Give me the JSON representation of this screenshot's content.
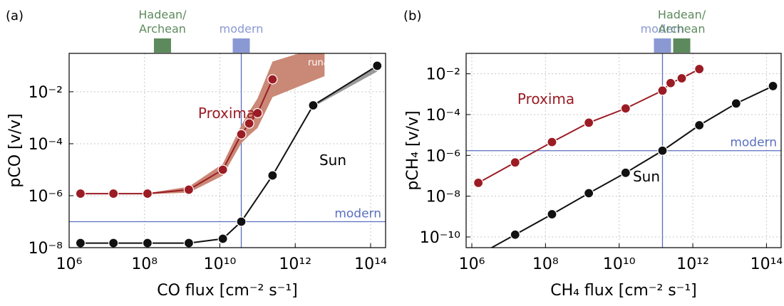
{
  "chart_data": [
    {
      "type": "line",
      "panel_label": "(a)",
      "xlabel": "CO flux [cm⁻² s⁻¹]",
      "ylabel": "pCO [v/v]",
      "xscale": "log",
      "yscale": "log",
      "xlim": [
        1000000,
        250000000000000.0
      ],
      "ylim": [
        1e-08,
        0.3
      ],
      "grid": true,
      "x_ticks": [
        1000000,
        100000000,
        10000000000,
        1000000000000,
        100000000000000
      ],
      "x_tick_labels": [
        "10⁶",
        "10⁸",
        "10¹⁰",
        "10¹²",
        "10¹⁴"
      ],
      "y_ticks": [
        1e-08,
        1e-06,
        0.0001,
        0.01
      ],
      "y_tick_labels": [
        "10⁻⁸",
        "10⁻⁶",
        "10⁻⁴",
        "10⁻²"
      ],
      "series": [
        {
          "name": "Proxima",
          "color": "#9b1c24",
          "x": [
            2000000,
            15000000,
            120000000,
            1500000000,
            12000000000,
            37000000000,
            60000000000,
            100000000000,
            250000000000
          ],
          "y": [
            1.2e-06,
            1.2e-06,
            1.2e-06,
            1.7e-06,
            1e-05,
            0.00023,
            0.0006,
            0.0015,
            0.03
          ]
        },
        {
          "name": "Sun",
          "color": "#111111",
          "x": [
            2000000,
            15000000,
            120000000,
            1500000000,
            12000000000,
            37000000000,
            250000000000,
            3000000000000,
            150000000000000
          ],
          "y": [
            1.5e-08,
            1.5e-08,
            1.5e-08,
            1.5e-08,
            2.2e-08,
            1e-07,
            6e-06,
            0.003,
            0.1
          ]
        }
      ],
      "bands": [
        {
          "label": "runaway",
          "color": "#c7826f"
        }
      ],
      "ref_lines": {
        "vertical_x": 37000000000,
        "horizontal_y": 1e-07,
        "horizontal_label": "modern",
        "color": "#5a6fbf"
      },
      "top_markers": [
        {
          "label_lines": [
            "Hadean/",
            "Archean"
          ],
          "x": 300000000,
          "color": "#5d8a5d"
        },
        {
          "label_lines": [
            "modern"
          ],
          "x": 37000000000,
          "color": "#8a98d4"
        }
      ],
      "annotations": {
        "proxima": "Proxima",
        "sun": "Sun"
      }
    },
    {
      "type": "line",
      "panel_label": "(b)",
      "xlabel": "CH₄ flux [cm⁻² s⁻¹]",
      "ylabel": "pCH₄ [v/v]",
      "xscale": "log",
      "yscale": "log",
      "xlim": [
        700000,
        250000000000000.0
      ],
      "ylim": [
        3e-11,
        0.1
      ],
      "grid": true,
      "x_ticks": [
        1000000,
        100000000,
        10000000000,
        1000000000000,
        100000000000000
      ],
      "x_tick_labels": [
        "10⁶",
        "10⁸",
        "10¹⁰",
        "10¹²",
        "10¹⁴"
      ],
      "y_ticks": [
        1e-10,
        1e-08,
        1e-06,
        0.0001,
        0.01
      ],
      "y_tick_labels": [
        "10⁻¹⁰",
        "10⁻⁸",
        "10⁻⁶",
        "10⁻⁴",
        "10⁻²"
      ],
      "series": [
        {
          "name": "Proxima",
          "color": "#9b1c24",
          "x": [
            1500000,
            15000000,
            150000000,
            1500000000,
            15000000000,
            150000000000,
            250000000000,
            500000000000,
            1500000000000
          ],
          "y": [
            4.5e-08,
            4.5e-07,
            4.5e-06,
            4e-05,
            0.0002,
            0.0015,
            0.0035,
            0.006,
            0.017
          ]
        },
        {
          "name": "Sun",
          "color": "#111111",
          "x": [
            1500000,
            15000000,
            150000000,
            1500000000,
            15000000000,
            150000000000,
            1500000000000,
            15000000000000,
            150000000000000
          ],
          "y": [
            1.3e-11,
            1.3e-10,
            1.3e-09,
            1.4e-08,
            1.4e-07,
            1.7e-06,
            3e-05,
            0.00035,
            0.0025
          ]
        }
      ],
      "ref_lines": {
        "vertical_x": 150000000000,
        "horizontal_y": 1.7e-06,
        "horizontal_label": "modern",
        "color": "#5a6fbf"
      },
      "top_markers": [
        {
          "label_lines": [
            "modern"
          ],
          "x": 150000000000,
          "color": "#8a98d4"
        },
        {
          "label_lines": [
            "Hadean/",
            "Archean"
          ],
          "x": 500000000000,
          "color": "#5d8a5d"
        }
      ],
      "annotations": {
        "proxima": "Proxima",
        "sun": "Sun"
      }
    }
  ]
}
